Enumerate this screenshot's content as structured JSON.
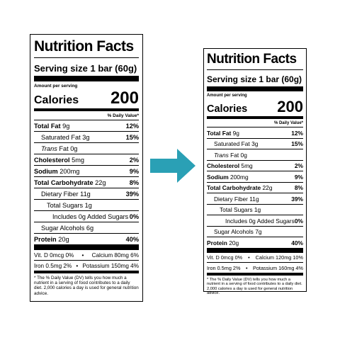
{
  "colors": {
    "arrow": "#2AA0B5"
  },
  "left": {
    "title": "Nutrition Facts",
    "serving_size": "Serving size  1 bar (60g)",
    "amount_per_serving": "Amount per serving",
    "calories_label": "Calories",
    "calories_value": "200",
    "daily_value_header": "% Daily Value*",
    "total_fat": {
      "label": "Total Fat",
      "amount": "9g",
      "dv": "12%"
    },
    "saturated_fat": {
      "label": "Saturated Fat 3g",
      "dv": "15%"
    },
    "trans_fat": {
      "label": "Trans",
      "amount": "Fat 0g"
    },
    "cholesterol": {
      "label": "Cholesterol",
      "amount": "5mg",
      "dv": "2%"
    },
    "sodium": {
      "label": "Sodium",
      "amount": "200mg",
      "dv": "9%"
    },
    "total_carb": {
      "label": "Total Carbohydrate",
      "amount": "22g",
      "dv": "8%"
    },
    "dietary_fiber": {
      "label": "Dietary Fiber 11g",
      "dv": "39%"
    },
    "total_sugars": {
      "label": "Total Sugars 1g"
    },
    "added_sugars": {
      "label": "Includes 0g Added Sugars",
      "dv": "0%"
    },
    "sugar_alcohols": {
      "label": "Sugar Alcohols 6g"
    },
    "protein": {
      "label": "Protein",
      "amount": "20g",
      "dv": "40%"
    },
    "vit_row": {
      "left": "Vit. D 0mcg 0%",
      "sep": "•",
      "right": "Calcium 80mg 6%"
    },
    "iron_row": {
      "left": "Iron 0.5mg 2%",
      "sep": "•",
      "right": "Potassium 150mg 4%"
    },
    "footnote": "* The % Daily Value (DV) tells you how much a nutrient in a serving of food contributes to a daily diet. 2,000 calories a day is used for general nutrition advice."
  },
  "right": {
    "title": "Nutrition Facts",
    "serving_size": "Serving size  1 bar (60g)",
    "amount_per_serving": "Amount per serving",
    "calories_label": "Calories",
    "calories_value": "200",
    "daily_value_header": "% Daily Value*",
    "total_fat": {
      "label": "Total Fat",
      "amount": "9g",
      "dv": "12%"
    },
    "saturated_fat": {
      "label": "Saturated Fat 3g",
      "dv": "15%"
    },
    "trans_fat": {
      "label": "Trans",
      "amount": "Fat 0g"
    },
    "cholesterol": {
      "label": "Cholesterol",
      "amount": "5mg",
      "dv": "2%"
    },
    "sodium": {
      "label": "Sodium",
      "amount": "200mg",
      "dv": "9%"
    },
    "total_carb": {
      "label": "Total Carbohydrate",
      "amount": "22g",
      "dv": "8%"
    },
    "dietary_fiber": {
      "label": "Dietary Fiber 11g",
      "dv": "39%"
    },
    "total_sugars": {
      "label": "Total Sugars 1g"
    },
    "added_sugars": {
      "label": "Includes 0g Added Sugars",
      "dv": "0%"
    },
    "sugar_alcohols": {
      "label": "Sugar Alcohols 7g"
    },
    "protein": {
      "label": "Protein",
      "amount": "20g",
      "dv": "40%"
    },
    "vit_row": {
      "left": "Vit. D 0mcg 0%",
      "sep": "•",
      "right": "Calcium 120mg 10%"
    },
    "iron_row": {
      "left": "Iron 0.5mg 2%",
      "sep": "•",
      "right": "Potassium 160mg 4%"
    },
    "footnote": "* The % Daily Value (DV) tells you how much a nutrient in a serving of food contributes to a daily diet. 2,000 calories a day is used for general nutrition advice."
  }
}
